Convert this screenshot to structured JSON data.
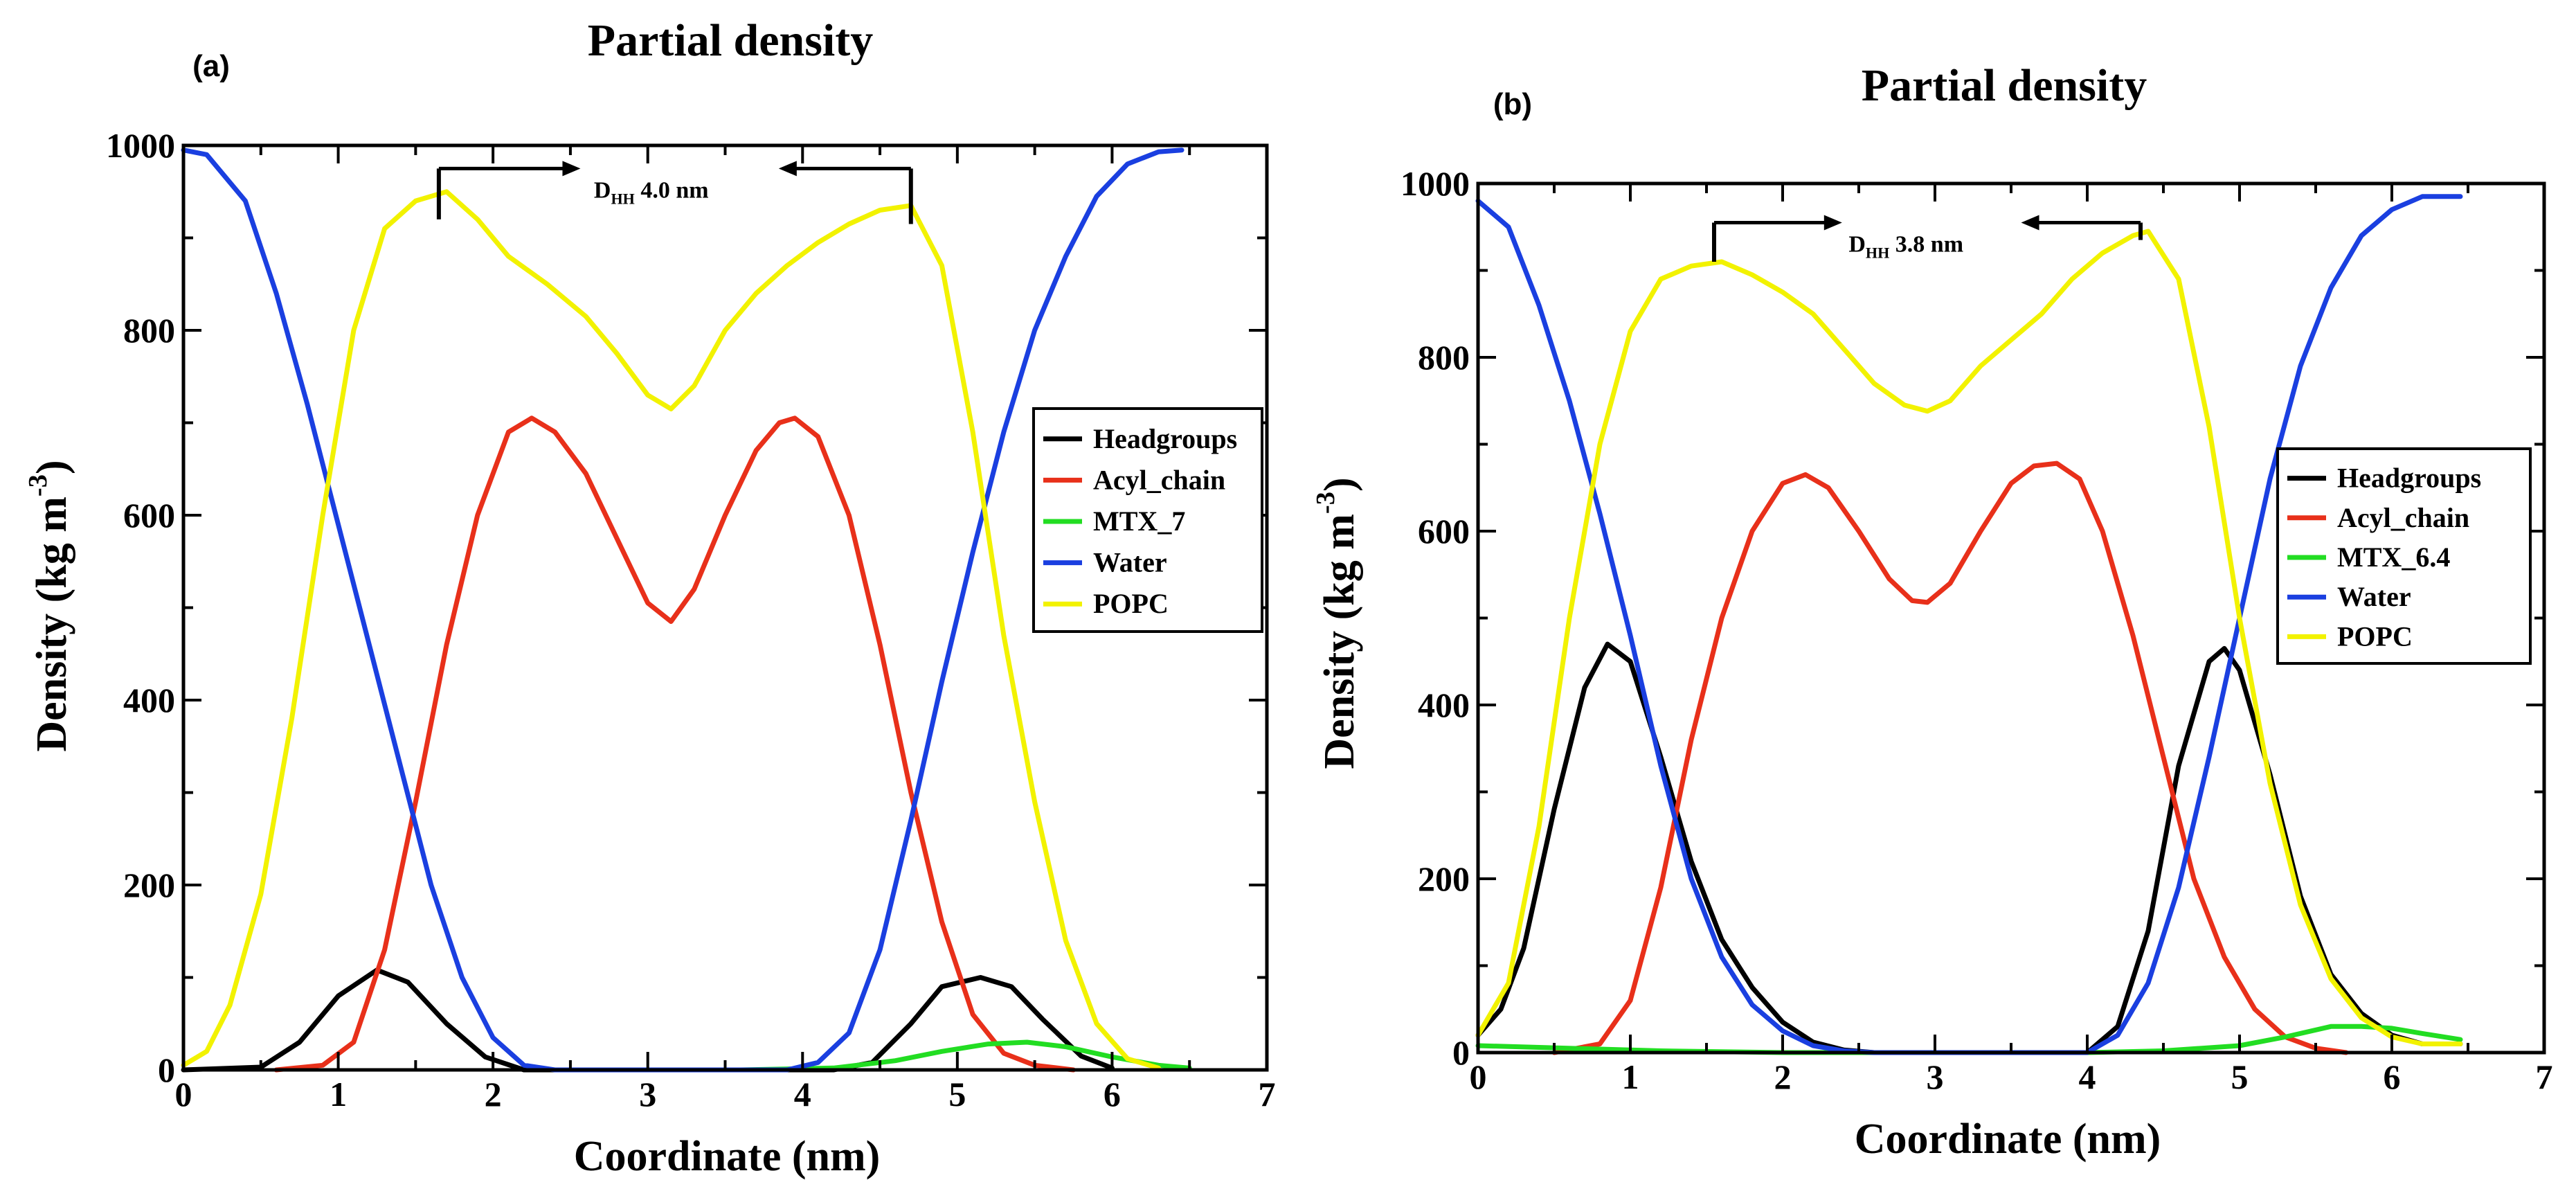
{
  "chart_data": [
    {
      "type": "line",
      "panel_label": "(a)",
      "title": "Partial density",
      "xlabel": "Coordinate (nm)",
      "ylabel_main": "Density (kg m",
      "ylabel_sup": "-3",
      "ylabel_close": ")",
      "xlim": [
        0,
        7
      ],
      "ylim": [
        0,
        1000
      ],
      "xticks": [
        "0",
        "1",
        "2",
        "3",
        "4",
        "5",
        "6",
        "7"
      ],
      "yticks": [
        "0",
        "200",
        "400",
        "600",
        "800",
        "1000"
      ],
      "grid": false,
      "legend_position": "right",
      "annotation": {
        "label_main": "D",
        "label_sub": "HH",
        "label_rest": " 4.0 nm",
        "x_start": 1.65,
        "x_end": 4.7,
        "y": 975,
        "left_drop_to": 920,
        "right_drop_to": 915
      },
      "series": [
        {
          "name": "Headgroups",
          "color": "#000000",
          "x": [
            0,
            0.5,
            0.75,
            1.0,
            1.25,
            1.45,
            1.7,
            1.95,
            2.2,
            4.2,
            4.45,
            4.7,
            4.9,
            5.15,
            5.35,
            5.55,
            5.8,
            6.0
          ],
          "y": [
            0,
            3,
            30,
            80,
            108,
            95,
            50,
            14,
            0,
            0,
            8,
            50,
            90,
            100,
            90,
            55,
            15,
            2
          ]
        },
        {
          "name": "Acyl_chain",
          "color": "#e8301a",
          "x": [
            0.6,
            0.9,
            1.1,
            1.3,
            1.5,
            1.7,
            1.9,
            2.1,
            2.25,
            2.4,
            2.6,
            2.8,
            3.0,
            3.15,
            3.3,
            3.5,
            3.7,
            3.85,
            3.95,
            4.1,
            4.3,
            4.5,
            4.7,
            4.9,
            5.1,
            5.3,
            5.5,
            5.75
          ],
          "y": [
            0,
            5,
            30,
            130,
            290,
            460,
            600,
            690,
            705,
            690,
            645,
            575,
            505,
            485,
            520,
            600,
            670,
            700,
            705,
            685,
            600,
            460,
            300,
            160,
            60,
            18,
            5,
            0
          ]
        },
        {
          "name": "MTX_7",
          "color": "#22dd22",
          "x": [
            3.6,
            4.2,
            4.6,
            4.9,
            5.2,
            5.45,
            5.7,
            6.0,
            6.3,
            6.5
          ],
          "y": [
            0,
            2,
            10,
            20,
            28,
            30,
            25,
            14,
            5,
            2
          ]
        },
        {
          "name": "Water",
          "color": "#1a3fe0",
          "x": [
            0,
            0.15,
            0.4,
            0.6,
            0.8,
            1.0,
            1.2,
            1.4,
            1.6,
            1.8,
            2.0,
            2.2,
            2.4,
            3.9,
            4.1,
            4.3,
            4.5,
            4.7,
            4.9,
            5.1,
            5.3,
            5.5,
            5.7,
            5.9,
            6.1,
            6.3,
            6.45
          ],
          "y": [
            995,
            990,
            940,
            840,
            720,
            590,
            460,
            330,
            200,
            100,
            35,
            5,
            0,
            0,
            8,
            40,
            130,
            270,
            420,
            560,
            690,
            800,
            880,
            945,
            980,
            993,
            995
          ]
        },
        {
          "name": "POPC",
          "color": "#f2f200",
          "x": [
            0,
            0.15,
            0.3,
            0.5,
            0.7,
            0.9,
            1.1,
            1.3,
            1.5,
            1.7,
            1.9,
            2.1,
            2.35,
            2.6,
            2.8,
            3.0,
            3.15,
            3.3,
            3.5,
            3.7,
            3.9,
            4.1,
            4.3,
            4.5,
            4.7,
            4.9,
            5.1,
            5.3,
            5.5,
            5.7,
            5.9,
            6.1,
            6.3
          ],
          "y": [
            5,
            20,
            70,
            190,
            380,
            600,
            800,
            910,
            940,
            950,
            920,
            880,
            850,
            815,
            775,
            730,
            715,
            740,
            800,
            840,
            870,
            895,
            915,
            930,
            935,
            870,
            690,
            470,
            290,
            140,
            50,
            12,
            2
          ]
        }
      ]
    },
    {
      "type": "line",
      "panel_label": "(b)",
      "title": "Partial density",
      "xlabel": "Coordinate (nm)",
      "ylabel_main": "Density (kg m",
      "ylabel_sup": "-3",
      "ylabel_close": ")",
      "xlim": [
        0,
        7
      ],
      "ylim": [
        0,
        1000
      ],
      "xticks": [
        "0",
        "1",
        "2",
        "3",
        "4",
        "5",
        "6",
        "7"
      ],
      "yticks": [
        "0",
        "200",
        "400",
        "600",
        "800",
        "1000"
      ],
      "grid": false,
      "legend_position": "right",
      "annotation": {
        "label_main": "D",
        "label_sub": "HH",
        "label_rest": " 3.8 nm",
        "x_start": 1.55,
        "x_end": 4.35,
        "y": 955,
        "left_drop_to": 910,
        "right_drop_to": 935
      },
      "series": [
        {
          "name": "Headgroups",
          "color": "#000000",
          "x": [
            0,
            0.15,
            0.3,
            0.5,
            0.7,
            0.85,
            1.0,
            1.2,
            1.4,
            1.6,
            1.8,
            2.0,
            2.2,
            2.4,
            2.6,
            4.0,
            4.2,
            4.4,
            4.6,
            4.8,
            4.9,
            5.0,
            5.2,
            5.4,
            5.6,
            5.8,
            6.0,
            6.2,
            6.45
          ],
          "y": [
            20,
            50,
            120,
            280,
            420,
            470,
            450,
            340,
            220,
            130,
            75,
            35,
            12,
            3,
            0,
            0,
            30,
            140,
            330,
            450,
            465,
            440,
            320,
            180,
            90,
            45,
            20,
            10,
            10
          ]
        },
        {
          "name": "Acyl_chain",
          "color": "#e8301a",
          "x": [
            0.5,
            0.8,
            1.0,
            1.2,
            1.4,
            1.6,
            1.8,
            2.0,
            2.15,
            2.3,
            2.5,
            2.7,
            2.85,
            2.95,
            3.1,
            3.3,
            3.5,
            3.65,
            3.8,
            3.95,
            4.1,
            4.3,
            4.5,
            4.7,
            4.9,
            5.1,
            5.3,
            5.5,
            5.7
          ],
          "y": [
            0,
            10,
            60,
            190,
            360,
            500,
            600,
            655,
            665,
            650,
            600,
            545,
            520,
            518,
            540,
            600,
            655,
            675,
            678,
            660,
            600,
            480,
            340,
            200,
            110,
            50,
            18,
            5,
            0
          ]
        },
        {
          "name": "MTX_6.4",
          "color": "#22dd22",
          "x": [
            0,
            0.4,
            0.8,
            1.2,
            1.6,
            2.0,
            4.0,
            4.5,
            5.0,
            5.3,
            5.6,
            5.8,
            6.0,
            6.2,
            6.45
          ],
          "y": [
            8,
            6,
            4,
            2,
            1,
            0,
            0,
            2,
            8,
            18,
            30,
            30,
            28,
            22,
            15
          ]
        },
        {
          "name": "Water",
          "color": "#1a3fe0",
          "x": [
            0,
            0.2,
            0.4,
            0.6,
            0.8,
            1.0,
            1.2,
            1.4,
            1.6,
            1.8,
            2.0,
            2.2,
            2.4,
            2.6,
            4.0,
            4.2,
            4.4,
            4.6,
            4.8,
            5.0,
            5.2,
            5.4,
            5.6,
            5.8,
            6.0,
            6.2,
            6.45
          ],
          "y": [
            980,
            950,
            860,
            750,
            620,
            480,
            330,
            200,
            110,
            55,
            25,
            8,
            2,
            0,
            0,
            20,
            80,
            190,
            340,
            500,
            660,
            790,
            880,
            940,
            970,
            985,
            985
          ]
        },
        {
          "name": "POPC",
          "color": "#f2f200",
          "x": [
            0,
            0.2,
            0.4,
            0.6,
            0.8,
            1.0,
            1.2,
            1.4,
            1.6,
            1.8,
            2.0,
            2.2,
            2.4,
            2.6,
            2.8,
            2.95,
            3.1,
            3.3,
            3.5,
            3.7,
            3.9,
            4.1,
            4.3,
            4.4,
            4.6,
            4.8,
            5.0,
            5.2,
            5.4,
            5.6,
            5.8,
            6.0,
            6.2,
            6.45
          ],
          "y": [
            20,
            80,
            260,
            500,
            700,
            830,
            890,
            905,
            910,
            895,
            875,
            850,
            810,
            770,
            745,
            738,
            750,
            790,
            820,
            850,
            890,
            920,
            940,
            945,
            890,
            720,
            500,
            310,
            170,
            85,
            40,
            18,
            10,
            10
          ]
        }
      ]
    }
  ]
}
